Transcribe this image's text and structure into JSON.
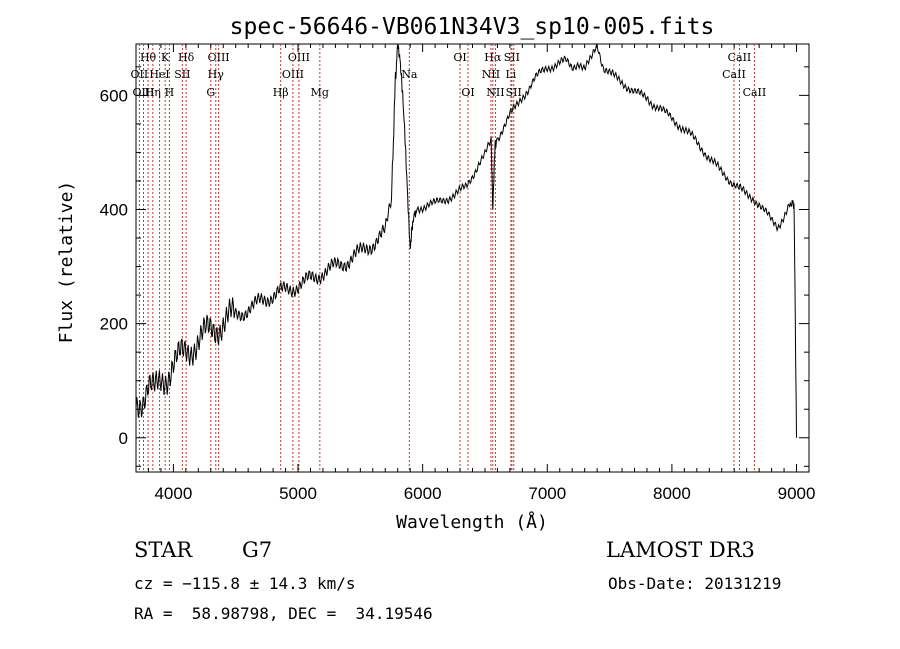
{
  "chart_data": {
    "type": "line",
    "title": "spec-56646-VB061N34V3_sp10-005.fits",
    "xlabel": "Wavelength (Å)",
    "ylabel": "Flux (relative)",
    "xlim": [
      3700,
      9100
    ],
    "ylim": [
      -60,
      690
    ],
    "xticks": [
      4000,
      5000,
      6000,
      7000,
      8000,
      9000
    ],
    "yticks": [
      0,
      200,
      400,
      600
    ],
    "grid": false,
    "series": [
      {
        "name": "flux",
        "x": [
          3700,
          3750,
          3800,
          3850,
          3900,
          3950,
          4000,
          4050,
          4100,
          4150,
          4200,
          4250,
          4300,
          4350,
          4400,
          4450,
          4500,
          4550,
          4600,
          4650,
          4700,
          4750,
          4800,
          4850,
          4900,
          4950,
          5000,
          5050,
          5100,
          5150,
          5200,
          5250,
          5300,
          5350,
          5400,
          5450,
          5500,
          5550,
          5600,
          5650,
          5700,
          5750,
          5780,
          5800,
          5820,
          5840,
          5860,
          5880,
          5900,
          5920,
          5950,
          6000,
          6050,
          6100,
          6150,
          6200,
          6250,
          6300,
          6350,
          6400,
          6450,
          6500,
          6550,
          6563,
          6580,
          6600,
          6650,
          6700,
          6750,
          6800,
          6850,
          6900,
          6950,
          7000,
          7050,
          7100,
          7150,
          7200,
          7250,
          7300,
          7350,
          7400,
          7450,
          7500,
          7550,
          7600,
          7650,
          7700,
          7750,
          7800,
          7850,
          7900,
          7950,
          8000,
          8050,
          8100,
          8150,
          8200,
          8250,
          8300,
          8350,
          8400,
          8450,
          8500,
          8550,
          8600,
          8650,
          8700,
          8750,
          8800,
          8850,
          8900,
          8950,
          8980,
          9000
        ],
        "y": [
          60,
          70,
          90,
          80,
          100,
          110,
          130,
          140,
          150,
          160,
          170,
          180,
          190,
          195,
          200,
          210,
          215,
          220,
          225,
          230,
          240,
          245,
          250,
          255,
          258,
          262,
          268,
          272,
          278,
          283,
          290,
          295,
          300,
          305,
          310,
          318,
          325,
          333,
          340,
          350,
          360,
          420,
          620,
          690,
          660,
          600,
          520,
          420,
          330,
          380,
          400,
          405,
          410,
          410,
          415,
          420,
          425,
          432,
          440,
          460,
          480,
          495,
          520,
          400,
          510,
          525,
          545,
          565,
          580,
          598,
          612,
          628,
          640,
          650,
          652,
          656,
          660,
          650,
          658,
          645,
          662,
          690,
          650,
          640,
          630,
          622,
          615,
          607,
          600,
          595,
          585,
          578,
          568,
          560,
          550,
          540,
          530,
          518,
          505,
          490,
          478,
          465,
          455,
          445,
          435,
          425,
          420,
          410,
          395,
          380,
          370,
          390,
          410,
          410,
          0
        ]
      }
    ],
    "spectral_lines": [
      {
        "label": "Hθ",
        "x": 3797,
        "row": 0
      },
      {
        "label": "OII",
        "x": 3727,
        "row": 1
      },
      {
        "label": "OIII",
        "x": 3760,
        "row": 2
      },
      {
        "label": "HeI",
        "x": 3889,
        "row": 1
      },
      {
        "label": "Hη",
        "x": 3835,
        "row": 2
      },
      {
        "label": "K",
        "x": 3934,
        "row": 0
      },
      {
        "label": "H",
        "x": 3968,
        "row": 2
      },
      {
        "label": "SII",
        "x": 4072,
        "row": 1
      },
      {
        "label": "Hδ",
        "x": 4102,
        "row": 0
      },
      {
        "label": "OIII",
        "x": 4363,
        "row": 0
      },
      {
        "label": "Hγ",
        "x": 4340,
        "row": 1
      },
      {
        "label": "G",
        "x": 4300,
        "row": 2
      },
      {
        "label": "Hβ",
        "x": 4861,
        "row": 2
      },
      {
        "label": "OIII",
        "x": 5007,
        "row": 0
      },
      {
        "label": "OIII",
        "x": 4959,
        "row": 1
      },
      {
        "label": "Mg",
        "x": 5175,
        "row": 2
      },
      {
        "label": "Na",
        "x": 5893,
        "row": 1
      },
      {
        "label": "OI",
        "x": 6300,
        "row": 0
      },
      {
        "label": "OI",
        "x": 6364,
        "row": 2
      },
      {
        "label": "Hα",
        "x": 6563,
        "row": 0
      },
      {
        "label": "SII",
        "x": 6716,
        "row": 0
      },
      {
        "label": "NII",
        "x": 6548,
        "row": 1
      },
      {
        "label": "Li",
        "x": 6708,
        "row": 1
      },
      {
        "label": "NII",
        "x": 6584,
        "row": 2
      },
      {
        "label": "SII",
        "x": 6731,
        "row": 2
      },
      {
        "label": "CaII",
        "x": 8542,
        "row": 0
      },
      {
        "label": "CaII",
        "x": 8498,
        "row": 1
      },
      {
        "label": "CaII",
        "x": 8662,
        "row": 2
      }
    ]
  },
  "footer": {
    "object_class": "STAR",
    "subclass": "G7",
    "survey": "LAMOST DR3",
    "redshift": "cz = −115.8 ± 14.3 km/s",
    "obs_date": "Obs-Date: 20131219",
    "coords": "RA =  58.98798, DEC =  34.19546"
  },
  "colors": {
    "line_marker": "#c0392b",
    "spectrum": "#000000"
  }
}
